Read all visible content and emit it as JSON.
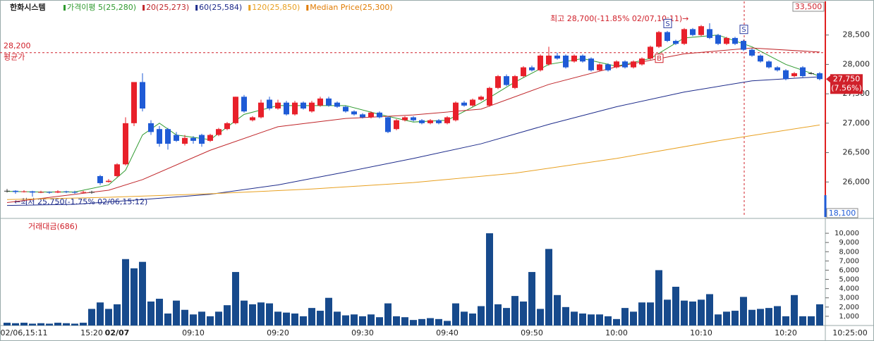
{
  "chart_data": {
    "type": "candlestick",
    "title": "한화시스템",
    "categories": [
      null,
      null,
      "02/06,15:11",
      null,
      null,
      null,
      null,
      null,
      null,
      null,
      "15:20",
      null,
      null,
      "02/07",
      null,
      null,
      null,
      null,
      null,
      null,
      null,
      null,
      "09:10",
      null,
      null,
      null,
      null,
      null,
      null,
      null,
      null,
      null,
      "09:20",
      null,
      null,
      null,
      null,
      null,
      null,
      null,
      null,
      null,
      "09:30",
      null,
      null,
      null,
      null,
      null,
      null,
      null,
      null,
      null,
      "09:40",
      null,
      null,
      null,
      null,
      null,
      null,
      null,
      null,
      null,
      "09:50",
      null,
      null,
      null,
      null,
      null,
      null,
      null,
      null,
      null,
      "10:00",
      null,
      null,
      null,
      null,
      null,
      null,
      null,
      null,
      null,
      "10:10",
      null,
      null,
      null,
      null,
      null,
      null,
      null,
      null,
      null,
      "10:20",
      null,
      null,
      null,
      null
    ],
    "x_axis_end": "10:25:00",
    "up_color": "#e8202a",
    "down_color": "#1f5bd6",
    "candles": [
      [
        25850,
        25880,
        25820,
        25850
      ],
      [
        25850,
        25860,
        25800,
        25830
      ],
      [
        25830,
        25860,
        25820,
        25840
      ],
      [
        25840,
        25850,
        25750,
        25820
      ],
      [
        25820,
        25850,
        25810,
        25830
      ],
      [
        25830,
        25840,
        25800,
        25820
      ],
      [
        25820,
        25860,
        25810,
        25840
      ],
      [
        25840,
        25850,
        25810,
        25830
      ],
      [
        25830,
        25850,
        25800,
        25820
      ],
      [
        25820,
        25850,
        25810,
        25830
      ],
      [
        25830,
        25850,
        25800,
        25830
      ],
      [
        26100,
        26120,
        25950,
        25980
      ],
      [
        26000,
        26050,
        25990,
        26020
      ],
      [
        26100,
        26320,
        26080,
        26300
      ],
      [
        26300,
        27100,
        26280,
        27000
      ],
      [
        27000,
        27700,
        26950,
        27700
      ],
      [
        27700,
        27850,
        27200,
        27250
      ],
      [
        27000,
        27050,
        26800,
        26850
      ],
      [
        26900,
        26950,
        26600,
        26650
      ],
      [
        26900,
        26920,
        26550,
        26650
      ],
      [
        26800,
        26850,
        26680,
        26700
      ],
      [
        26650,
        26800,
        26620,
        26750
      ],
      [
        26750,
        26780,
        26650,
        26700
      ],
      [
        26800,
        26820,
        26600,
        26650
      ],
      [
        26700,
        26820,
        26680,
        26800
      ],
      [
        26800,
        26920,
        26780,
        26900
      ],
      [
        26900,
        27020,
        26880,
        27000
      ],
      [
        27000,
        27450,
        26980,
        27450
      ],
      [
        27450,
        27480,
        27180,
        27200
      ],
      [
        27050,
        27120,
        27030,
        27100
      ],
      [
        27100,
        27400,
        27080,
        27350
      ],
      [
        27400,
        27450,
        27220,
        27250
      ],
      [
        27250,
        27400,
        27230,
        27350
      ],
      [
        27350,
        27380,
        27130,
        27150
      ],
      [
        27150,
        27380,
        27130,
        27350
      ],
      [
        27350,
        27370,
        27230,
        27250
      ],
      [
        27200,
        27380,
        27180,
        27350
      ],
      [
        27300,
        27450,
        27280,
        27420
      ],
      [
        27420,
        27450,
        27280,
        27300
      ],
      [
        27350,
        27370,
        27260,
        27280
      ],
      [
        27280,
        27300,
        27180,
        27200
      ],
      [
        27200,
        27220,
        27130,
        27150
      ],
      [
        27150,
        27170,
        27080,
        27100
      ],
      [
        27100,
        27200,
        27080,
        27180
      ],
      [
        27180,
        27200,
        27080,
        27100
      ],
      [
        27100,
        27120,
        26830,
        26850
      ],
      [
        26900,
        27070,
        26880,
        27050
      ],
      [
        27050,
        27120,
        27030,
        27100
      ],
      [
        27100,
        27120,
        27030,
        27050
      ],
      [
        27050,
        27070,
        26980,
        27000
      ],
      [
        27000,
        27070,
        26980,
        27050
      ],
      [
        27050,
        27070,
        26980,
        27000
      ],
      [
        27000,
        27120,
        26980,
        27100
      ],
      [
        27050,
        27370,
        27030,
        27350
      ],
      [
        27350,
        27380,
        27280,
        27300
      ],
      [
        27300,
        27420,
        27280,
        27400
      ],
      [
        27400,
        27470,
        27380,
        27450
      ],
      [
        27300,
        27620,
        27280,
        27600
      ],
      [
        27600,
        27820,
        27580,
        27800
      ],
      [
        27800,
        27830,
        27630,
        27650
      ],
      [
        27600,
        27820,
        27580,
        27800
      ],
      [
        27800,
        27970,
        27780,
        27950
      ],
      [
        27950,
        27980,
        27880,
        27900
      ],
      [
        27900,
        28170,
        27880,
        28150
      ],
      [
        28000,
        28300,
        27980,
        28150
      ],
      [
        28150,
        28200,
        28080,
        28100
      ],
      [
        28150,
        28170,
        27930,
        27950
      ],
      [
        28050,
        28170,
        28030,
        28150
      ],
      [
        28150,
        28170,
        28030,
        28050
      ],
      [
        28100,
        28120,
        27880,
        27900
      ],
      [
        27900,
        28020,
        27880,
        28000
      ],
      [
        28000,
        28020,
        27880,
        27900
      ],
      [
        27950,
        28070,
        27930,
        28050
      ],
      [
        28050,
        28070,
        27930,
        27950
      ],
      [
        27950,
        28070,
        27930,
        28050
      ],
      [
        28000,
        28120,
        27980,
        28100
      ],
      [
        28100,
        28320,
        28080,
        28300
      ],
      [
        28300,
        28570,
        28280,
        28550
      ],
      [
        28550,
        28570,
        28380,
        28400
      ],
      [
        28400,
        28420,
        28330,
        28350
      ],
      [
        28350,
        28620,
        28330,
        28600
      ],
      [
        28600,
        28620,
        28480,
        28500
      ],
      [
        28500,
        28670,
        28480,
        28650
      ],
      [
        28600,
        28700,
        28430,
        28450
      ],
      [
        28500,
        28520,
        28330,
        28350
      ],
      [
        28350,
        28470,
        28330,
        28450
      ],
      [
        28450,
        28470,
        28330,
        28350
      ],
      [
        28400,
        28420,
        28230,
        28250
      ],
      [
        28250,
        28270,
        28130,
        28150
      ],
      [
        28150,
        28170,
        28030,
        28050
      ],
      [
        28050,
        28070,
        27930,
        27950
      ],
      [
        27950,
        27970,
        27880,
        27900
      ],
      [
        27900,
        27920,
        27730,
        27750
      ],
      [
        27800,
        27870,
        27780,
        27850
      ],
      [
        27950,
        27970,
        27780,
        27800
      ],
      [
        27850,
        27870,
        27830,
        27850
      ],
      [
        27850,
        27870,
        27730,
        27750
      ]
    ],
    "ylim": [
      25440,
      29000
    ],
    "yticks": [
      {
        "value": 26000,
        "label": "26,000"
      },
      {
        "value": 26500,
        "label": "26,500"
      },
      {
        "value": 27000,
        "label": "27,000"
      },
      {
        "value": 27500,
        "label": "27,500"
      },
      {
        "value": 28000,
        "label": "28,000"
      },
      {
        "value": 28500,
        "label": "28,500"
      }
    ],
    "series": [
      {
        "name": "가격이평 5(25,280)",
        "color": "#2e9a2e",
        "x": [
          0,
          4,
          8,
          12,
          14,
          16,
          18,
          20,
          24,
          28,
          32,
          36,
          40,
          44,
          48,
          52,
          56,
          60,
          64,
          68,
          72,
          76,
          80,
          84,
          88,
          92,
          96
        ],
        "values": [
          25840,
          25830,
          25830,
          25950,
          26200,
          26800,
          27000,
          26800,
          26720,
          27150,
          27300,
          27300,
          27300,
          27150,
          27020,
          27050,
          27350,
          27700,
          28000,
          28100,
          27970,
          28100,
          28450,
          28500,
          28300,
          28000,
          27800
        ]
      },
      {
        "name": "20(25,273)",
        "color": "#c0262a",
        "x": [
          0,
          12,
          16,
          24,
          32,
          40,
          48,
          56,
          64,
          72,
          80,
          88,
          96
        ],
        "values": [
          25650,
          25860,
          26040,
          26540,
          26940,
          27080,
          27140,
          27240,
          27660,
          27960,
          28180,
          28280,
          28210
        ]
      },
      {
        "name": "60(25,584)",
        "color": "#1c2a8a",
        "x": [
          0,
          8,
          16,
          24,
          32,
          40,
          48,
          56,
          64,
          72,
          80,
          88,
          96
        ],
        "values": [
          25600,
          25620,
          25700,
          25790,
          25950,
          26170,
          26400,
          26650,
          26980,
          27280,
          27530,
          27720,
          27790
        ]
      },
      {
        "name": "120(25,850)",
        "color": "#e8a020",
        "x": [
          0,
          12,
          24,
          36,
          48,
          60,
          72,
          84,
          96
        ],
        "values": [
          25700,
          25740,
          25800,
          25880,
          25990,
          26150,
          26400,
          26700,
          26970
        ]
      }
    ],
    "median_legend": {
      "name": "Median Price(25,300)",
      "color": "#e07b00"
    },
    "avg_price": {
      "value": 28200,
      "label": "28,200",
      "name": "평균가"
    },
    "high_note": "최고 28,700(-11.85% 02/07,10:11)→",
    "low_note": "←최저 25,750(-1.75% 02/06,15:12)",
    "upper_limit": "33,500",
    "lower_limit": "18,100",
    "current_price": "27,750",
    "current_change": "(7.56%)",
    "signals": [
      "S",
      "B",
      "S"
    ],
    "volume_title": "거래대금(686)",
    "volume_color": "#174a8c",
    "volume": [
      300,
      250,
      300,
      200,
      250,
      200,
      300,
      250,
      200,
      300,
      1800,
      2500,
      1800,
      2300,
      7200,
      6200,
      6900,
      2600,
      2900,
      1300,
      2700,
      1700,
      1200,
      1500,
      1000,
      1500,
      2200,
      5800,
      2700,
      2300,
      2500,
      2400,
      1500,
      1400,
      1300,
      1000,
      1900,
      1600,
      3000,
      1500,
      1100,
      1200,
      1000,
      1200,
      900,
      2400,
      1000,
      900,
      600,
      700,
      800,
      700,
      500,
      2400,
      1500,
      1300,
      2100,
      10000,
      2300,
      1900,
      3200,
      2600,
      5800,
      1800,
      8300,
      3300,
      2000,
      1500,
      1300,
      1200,
      1200,
      1000,
      700,
      1900,
      1500,
      2500,
      2500,
      6000,
      2800,
      4200,
      2700,
      2600,
      2800,
      3400,
      1200,
      1500,
      1600,
      3100,
      1700,
      1800,
      1900,
      2100,
      1000,
      3300,
      1000,
      1000,
      2300
    ],
    "vlim": [
      0,
      11000
    ],
    "vticks": [
      {
        "value": 1000,
        "label": "1,000"
      },
      {
        "value": 2000,
        "label": "2,000"
      },
      {
        "value": 3000,
        "label": "3,000"
      },
      {
        "value": 4000,
        "label": "4,000"
      },
      {
        "value": 5000,
        "label": "5,000"
      },
      {
        "value": 6000,
        "label": "6,000"
      },
      {
        "value": 7000,
        "label": "7,000"
      },
      {
        "value": 8000,
        "label": "8,000"
      },
      {
        "value": 9000,
        "label": "9,000"
      },
      {
        "value": 10000,
        "label": "10,000"
      }
    ]
  }
}
